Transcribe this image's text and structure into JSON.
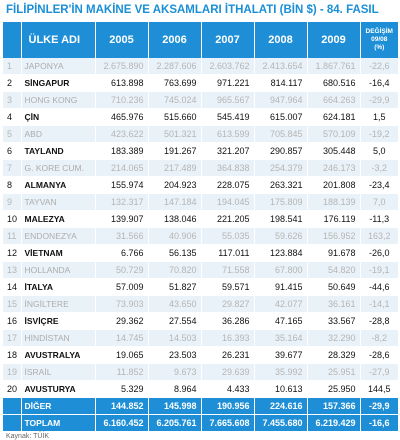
{
  "title": "FİLİPİNLER'İN MAKİNE VE AKSAMLARI İTHALATI (BİN $) - 84. FASIL",
  "columns": {
    "country": "ÜLKE ADI",
    "y2005": "2005",
    "y2006": "2006",
    "y2007": "2007",
    "y2008": "2008",
    "y2009": "2009",
    "change_line1": "DEĞİŞİM",
    "change_line2": "09/08",
    "change_line3": "(%)"
  },
  "rows": [
    {
      "idx": "1",
      "name": "JAPONYA",
      "y2005": "2.675.890",
      "y2006": "2.287.606",
      "y2007": "2.603.762",
      "y2008": "2.413.654",
      "y2009": "1.867.761",
      "change": "-22,6"
    },
    {
      "idx": "2",
      "name": "SİNGAPUR",
      "y2005": "613.898",
      "y2006": "763.699",
      "y2007": "971.221",
      "y2008": "814.117",
      "y2009": "680.516",
      "change": "-16,4"
    },
    {
      "idx": "3",
      "name": "HONG KONG",
      "y2005": "710.236",
      "y2006": "745.024",
      "y2007": "965.567",
      "y2008": "947.964",
      "y2009": "664.263",
      "change": "-29,9"
    },
    {
      "idx": "4",
      "name": "ÇİN",
      "y2005": "465.976",
      "y2006": "515.660",
      "y2007": "545.419",
      "y2008": "615.007",
      "y2009": "624.181",
      "change": "1,5"
    },
    {
      "idx": "5",
      "name": "ABD",
      "y2005": "423.622",
      "y2006": "501.321",
      "y2007": "613.599",
      "y2008": "705.845",
      "y2009": "570.109",
      "change": "-19,2"
    },
    {
      "idx": "6",
      "name": "TAYLAND",
      "y2005": "183.389",
      "y2006": "191.267",
      "y2007": "321.207",
      "y2008": "290.857",
      "y2009": "305.448",
      "change": "5,0"
    },
    {
      "idx": "7",
      "name": "G. KORE CUM.",
      "y2005": "214.065",
      "y2006": "217.489",
      "y2007": "364.838",
      "y2008": "254.379",
      "y2009": "246.173",
      "change": "-3,2"
    },
    {
      "idx": "8",
      "name": "ALMANYA",
      "y2005": "155.974",
      "y2006": "204.923",
      "y2007": "228.075",
      "y2008": "263.321",
      "y2009": "201.808",
      "change": "-23,4"
    },
    {
      "idx": "9",
      "name": "TAYVAN",
      "y2005": "132.317",
      "y2006": "147.184",
      "y2007": "194.045",
      "y2008": "175.809",
      "y2009": "188.139",
      "change": "7,0"
    },
    {
      "idx": "10",
      "name": "MALEZYA",
      "y2005": "139.907",
      "y2006": "138.046",
      "y2007": "221.205",
      "y2008": "198.541",
      "y2009": "176.119",
      "change": "-11,3"
    },
    {
      "idx": "11",
      "name": "ENDONEZYA",
      "y2005": "31.566",
      "y2006": "40.906",
      "y2007": "55.035",
      "y2008": "59.626",
      "y2009": "156.952",
      "change": "163,2"
    },
    {
      "idx": "12",
      "name": "VİETNAM",
      "y2005": "6.766",
      "y2006": "56.135",
      "y2007": "117.011",
      "y2008": "123.884",
      "y2009": "91.678",
      "change": "-26,0"
    },
    {
      "idx": "13",
      "name": "HOLLANDA",
      "y2005": "50.729",
      "y2006": "70.820",
      "y2007": "71.558",
      "y2008": "67.800",
      "y2009": "54.820",
      "change": "-19,1"
    },
    {
      "idx": "14",
      "name": "İTALYA",
      "y2005": "57.009",
      "y2006": "51.827",
      "y2007": "59.571",
      "y2008": "91.415",
      "y2009": "50.649",
      "change": "-44,6"
    },
    {
      "idx": "15",
      "name": "İNGİLTERE",
      "y2005": "73.903",
      "y2006": "43.650",
      "y2007": "29.827",
      "y2008": "42.077",
      "y2009": "36.161",
      "change": "-14,1"
    },
    {
      "idx": "16",
      "name": "İSVİÇRE",
      "y2005": "29.362",
      "y2006": "27.554",
      "y2007": "36.286",
      "y2008": "47.165",
      "y2009": "33.567",
      "change": "-28,8"
    },
    {
      "idx": "17",
      "name": "HİNDİSTAN",
      "y2005": "14.745",
      "y2006": "14.503",
      "y2007": "16.393",
      "y2008": "35.164",
      "y2009": "32.290",
      "change": "-8,2"
    },
    {
      "idx": "18",
      "name": "AVUSTRALYA",
      "y2005": "19.065",
      "y2006": "23.503",
      "y2007": "26.231",
      "y2008": "39.677",
      "y2009": "28.329",
      "change": "-28,6"
    },
    {
      "idx": "19",
      "name": "İSRAİL",
      "y2005": "11.852",
      "y2006": "9.673",
      "y2007": "29.639",
      "y2008": "35.992",
      "y2009": "25.951",
      "change": "-27,9"
    },
    {
      "idx": "20",
      "name": "AVUSTURYA",
      "y2005": "5.329",
      "y2006": "8.964",
      "y2007": "4.433",
      "y2008": "10.613",
      "y2009": "25.950",
      "change": "144,5"
    }
  ],
  "other": {
    "idx": "",
    "name": "DİĞER",
    "y2005": "144.852",
    "y2006": "145.998",
    "y2007": "190.956",
    "y2008": "224.616",
    "y2009": "157.366",
    "change": "-29,9"
  },
  "total": {
    "idx": "",
    "name": "TOPLAM",
    "y2005": "6.160.452",
    "y2006": "6.205.761",
    "y2007": "7.665.608",
    "y2008": "7.455.680",
    "y2009": "6.219.429",
    "change": "-16,6"
  },
  "source": "Kaynak: TÜİK"
}
